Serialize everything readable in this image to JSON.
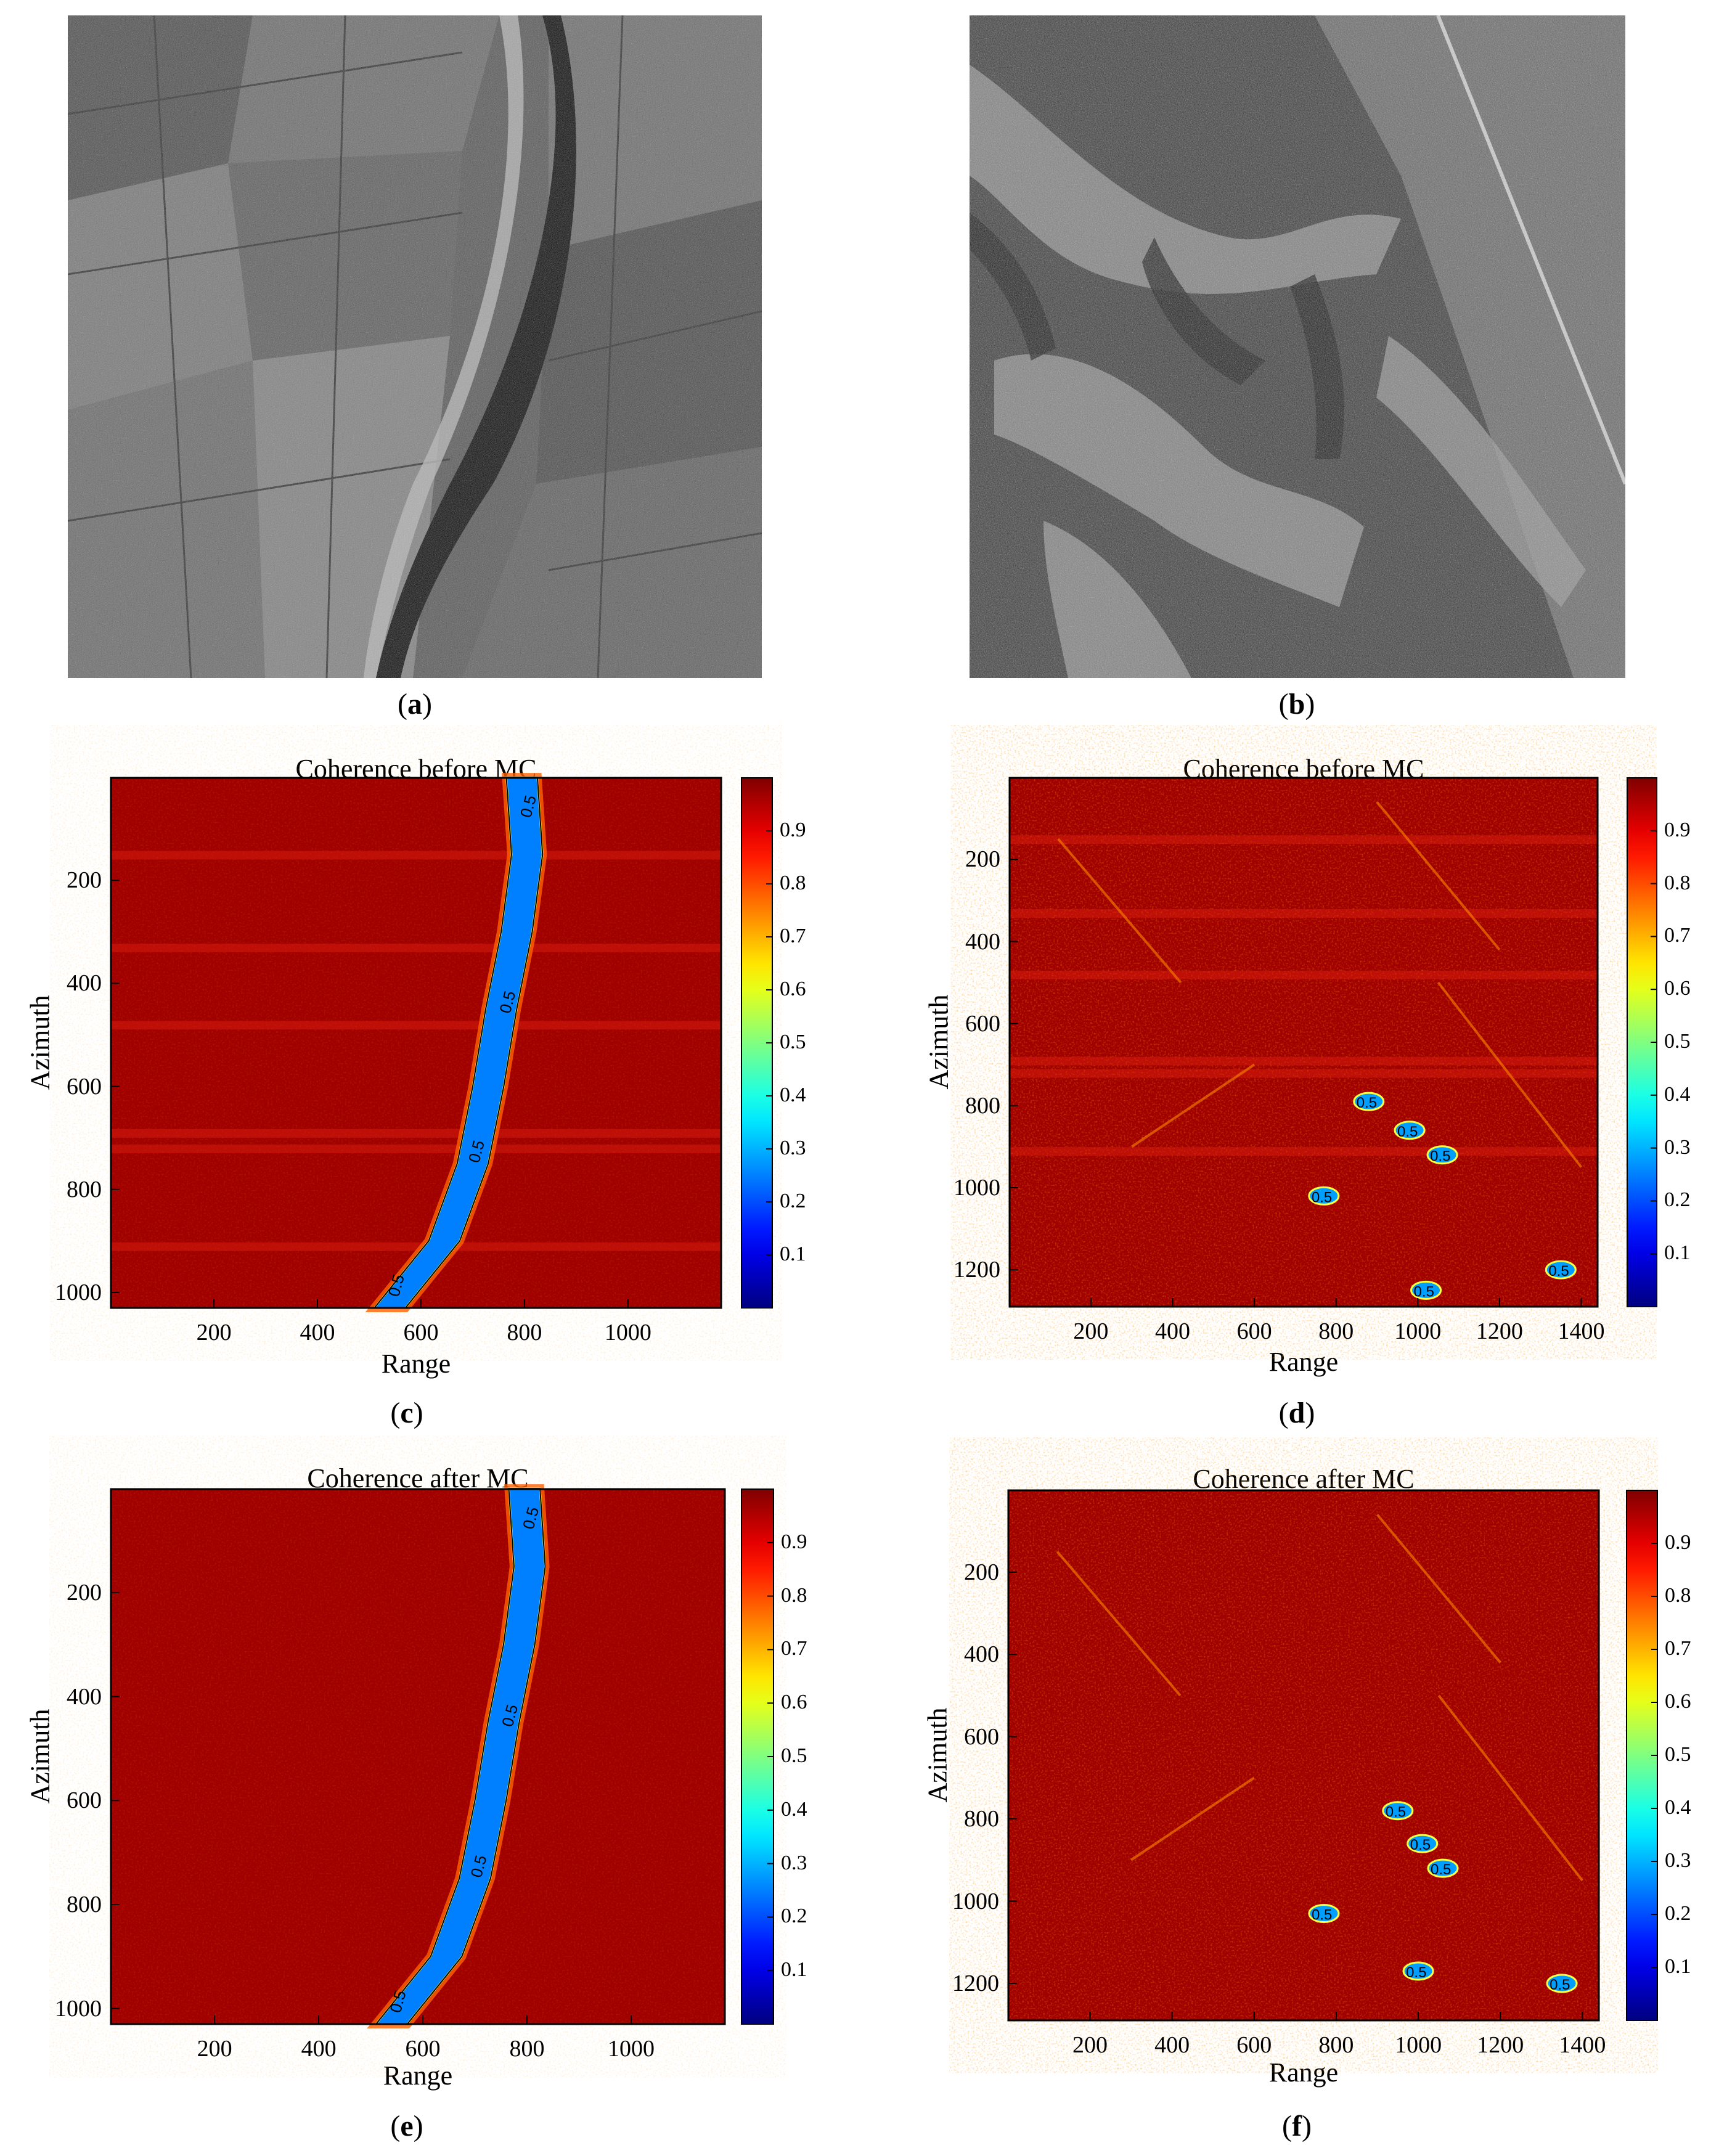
{
  "panels": {
    "a": {
      "label": "a"
    },
    "b": {
      "label": "b"
    },
    "c": {
      "label": "c"
    },
    "d": {
      "label": "d"
    },
    "e": {
      "label": "e"
    },
    "f": {
      "label": "f"
    }
  },
  "colors": {
    "high": "#a00000",
    "mid": "#ffff00",
    "low": "#0020c0",
    "contour": "#000000"
  },
  "chart_data": [
    {
      "id": "c",
      "type": "heatmap",
      "title": "Coherence before MC",
      "xlabel": "Range",
      "ylabel": "Azimuth",
      "xlim": [
        1,
        1180
      ],
      "ylim": [
        1,
        1030
      ],
      "xticks": [
        200,
        400,
        600,
        800,
        1000
      ],
      "yticks": [
        200,
        400,
        600,
        800,
        1000
      ],
      "colorbar": {
        "range": [
          0,
          1
        ],
        "ticks": [
          0.1,
          0.2,
          0.3,
          0.4,
          0.5,
          0.6,
          0.7,
          0.8,
          0.9
        ]
      },
      "contour_label": "0.5",
      "low_coherence_region": "river channel",
      "river_centerline": [
        [
          800,
          0
        ],
        [
          810,
          150
        ],
        [
          790,
          300
        ],
        [
          760,
          450
        ],
        [
          735,
          600
        ],
        [
          705,
          750
        ],
        [
          650,
          900
        ],
        [
          545,
          1030
        ]
      ]
    },
    {
      "id": "d",
      "type": "heatmap",
      "title": "Coherence before MC",
      "xlabel": "Range",
      "ylabel": "Azimuth",
      "xlim": [
        1,
        1440
      ],
      "ylim": [
        1,
        1290
      ],
      "xticks": [
        200,
        400,
        600,
        800,
        1000,
        1200,
        1400
      ],
      "yticks": [
        200,
        400,
        600,
        800,
        1000,
        1200
      ],
      "colorbar": {
        "range": [
          0,
          1
        ],
        "ticks": [
          0.1,
          0.2,
          0.3,
          0.4,
          0.5,
          0.6,
          0.7,
          0.8,
          0.9
        ]
      },
      "contour_label": "0.5",
      "low_coherence_patches": [
        [
          880,
          790
        ],
        [
          980,
          860
        ],
        [
          1060,
          920
        ],
        [
          1020,
          1250
        ],
        [
          1350,
          1200
        ],
        [
          770,
          1020
        ]
      ]
    },
    {
      "id": "e",
      "type": "heatmap",
      "title": "Coherence after MC",
      "xlabel": "Range",
      "ylabel": "Azimuth",
      "xlim": [
        1,
        1180
      ],
      "ylim": [
        1,
        1030
      ],
      "xticks": [
        200,
        400,
        600,
        800,
        1000
      ],
      "yticks": [
        200,
        400,
        600,
        800,
        1000
      ],
      "colorbar": {
        "range": [
          0,
          1
        ],
        "ticks": [
          0.1,
          0.2,
          0.3,
          0.4,
          0.5,
          0.6,
          0.7,
          0.8,
          0.9
        ]
      },
      "contour_label": "0.5",
      "low_coherence_region": "river channel",
      "river_centerline": [
        [
          800,
          0
        ],
        [
          810,
          150
        ],
        [
          790,
          300
        ],
        [
          760,
          450
        ],
        [
          735,
          600
        ],
        [
          705,
          750
        ],
        [
          650,
          900
        ],
        [
          545,
          1030
        ]
      ]
    },
    {
      "id": "f",
      "type": "heatmap",
      "title": "Coherence after MC",
      "xlabel": "Range",
      "ylabel": "Azimuth",
      "xlim": [
        1,
        1440
      ],
      "ylim": [
        1,
        1290
      ],
      "xticks": [
        200,
        400,
        600,
        800,
        1000,
        1200,
        1400
      ],
      "yticks": [
        200,
        400,
        600,
        800,
        1000,
        1200
      ],
      "colorbar": {
        "range": [
          0,
          1
        ],
        "ticks": [
          0.1,
          0.2,
          0.3,
          0.4,
          0.5,
          0.6,
          0.7,
          0.8,
          0.9
        ]
      },
      "contour_label": "0.5",
      "low_coherence_patches": [
        [
          950,
          780
        ],
        [
          1010,
          860
        ],
        [
          1060,
          920
        ],
        [
          1000,
          1170
        ],
        [
          1350,
          1200
        ],
        [
          770,
          1030
        ]
      ]
    }
  ]
}
